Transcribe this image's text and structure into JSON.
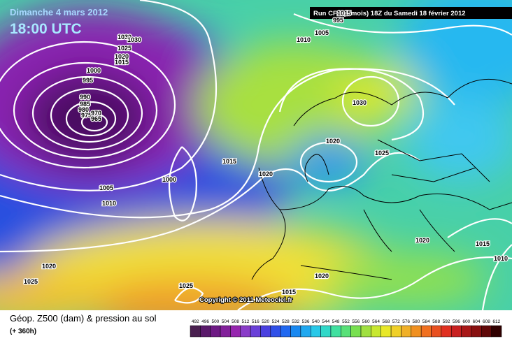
{
  "header": {
    "date": "Dimanche 4 mars 2012",
    "time": "18:00 UTC",
    "run": "Run CFS (1 mois) 18Z du Samedi 18 février 2012",
    "copyright": "Copyright © 2011 Meteociel.fr"
  },
  "footer": {
    "title": "Géop. Z500 (dam) & pression au sol",
    "lead": "(+ 360h)"
  },
  "legend": {
    "levels": [
      492,
      496,
      500,
      504,
      508,
      512,
      516,
      520,
      524,
      528,
      532,
      536,
      540,
      544,
      548,
      552,
      556,
      560,
      564,
      568,
      572,
      576,
      580,
      584,
      588,
      592,
      596,
      600,
      604,
      608,
      612
    ],
    "colors": [
      "#4a2050",
      "#5a1a6a",
      "#6e1a84",
      "#82209a",
      "#9626ae",
      "#8a3cc8",
      "#6a40d8",
      "#4a40e0",
      "#3050e8",
      "#2068f0",
      "#1888f0",
      "#20a8f0",
      "#28c8e8",
      "#30d8c8",
      "#40e0a0",
      "#58e078",
      "#78e050",
      "#a0e040",
      "#c8e830",
      "#e8e828",
      "#f0d028",
      "#f0b028",
      "#f09020",
      "#f07020",
      "#e85020",
      "#e03020",
      "#c82020",
      "#a81818",
      "#881010",
      "#600808",
      "#300000"
    ]
  },
  "isobars": [
    1030,
    1025,
    1020,
    1015,
    1000,
    995,
    990,
    985,
    980,
    975,
    970,
    965,
    1030,
    1005,
    1010,
    995,
    1015,
    1000,
    1005,
    1010,
    1020,
    1015,
    1020,
    1025,
    1030,
    1020,
    1020,
    1015,
    1010,
    1020,
    1025,
    1015,
    1025
  ]
}
